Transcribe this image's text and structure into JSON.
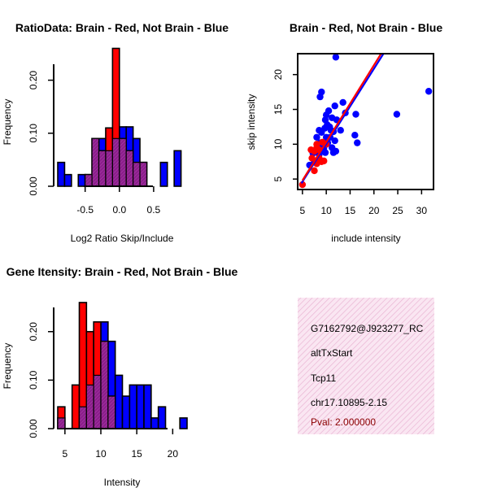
{
  "chart_data": [
    {
      "type": "bar",
      "title": "RatioData: Brain - Red, Not Brain - Blue",
      "xlabel": "Log2 Ratio Skip/Include",
      "ylabel": "Frequency",
      "xticks": [
        "-0.5",
        "0.0",
        "0.5"
      ],
      "yticks": [
        "0.00",
        "0.10",
        "0.20"
      ],
      "xlim": [
        -0.9,
        1.0
      ],
      "ylim": [
        0,
        0.25
      ],
      "bin_width": 0.1,
      "series": [
        {
          "name": "Not Brain",
          "color": "#0000ff",
          "bin_starts": [
            -0.9,
            -0.8,
            -0.7,
            -0.6,
            -0.5,
            -0.4,
            -0.3,
            -0.2,
            -0.1,
            0.0,
            0.1,
            0.2,
            0.3,
            0.4,
            0.5,
            0.6,
            0.7,
            0.8
          ],
          "values": [
            0.045,
            0.022,
            0.0,
            0.022,
            0.022,
            0.09,
            0.09,
            0.067,
            0.09,
            0.112,
            0.112,
            0.09,
            0.045,
            0.0,
            0.0,
            0.045,
            0.0,
            0.067
          ]
        },
        {
          "name": "Brain",
          "color": "#ff0000",
          "bin_starts": [
            -0.5,
            -0.4,
            -0.3,
            -0.2,
            -0.1,
            0.0,
            0.1,
            0.2,
            0.3
          ],
          "values": [
            0.022,
            0.09,
            0.067,
            0.11,
            0.26,
            0.09,
            0.067,
            0.045,
            0.045
          ]
        }
      ]
    },
    {
      "type": "scatter",
      "title": "Brain - Red, Not Brain - Blue",
      "xlabel": "include intensity",
      "ylabel": "skip intensity",
      "xticks": [
        "5",
        "10",
        "15",
        "20",
        "25",
        "30"
      ],
      "yticks": [
        "5",
        "10",
        "15",
        "20"
      ],
      "xlim": [
        4,
        32.5
      ],
      "ylim": [
        3.5,
        23
      ],
      "series": [
        {
          "name": "Not Brain",
          "color": "#0000ff",
          "points": [
            [
              12,
              22.5
            ],
            [
              9,
              17.5
            ],
            [
              8.7,
              16.8
            ],
            [
              10,
              14.2
            ],
            [
              10.5,
              14.8
            ],
            [
              11.8,
              15.5
            ],
            [
              13.5,
              16
            ],
            [
              12.2,
              13.5
            ],
            [
              14,
              14.5
            ],
            [
              16.2,
              14.3
            ],
            [
              16,
              11.3
            ],
            [
              16.5,
              10.2
            ],
            [
              24.8,
              14.3
            ],
            [
              31.5,
              17.6
            ],
            [
              11,
              12
            ],
            [
              11.5,
              11.8
            ],
            [
              13,
              12
            ],
            [
              10,
              11
            ],
            [
              9,
              10
            ],
            [
              8.7,
              10.2
            ],
            [
              9.5,
              9.5
            ],
            [
              10.3,
              10.2
            ],
            [
              11.2,
              9.5
            ],
            [
              12,
              9
            ],
            [
              11.8,
              10.5
            ],
            [
              10.7,
              12.5
            ],
            [
              8,
              11
            ],
            [
              8.5,
              12
            ],
            [
              9.7,
              12.3
            ],
            [
              10.2,
              12.8
            ],
            [
              9,
              11.7
            ],
            [
              7.5,
              9
            ],
            [
              7.2,
              8.7
            ],
            [
              8.5,
              8.5
            ],
            [
              9.8,
              8.8
            ],
            [
              10.8,
              11
            ],
            [
              8.8,
              9.2
            ],
            [
              9.8,
              13.5
            ],
            [
              11.2,
              13.8
            ],
            [
              7.5,
              7.5
            ],
            [
              6.5,
              7
            ],
            [
              11.5,
              8.8
            ]
          ]
        },
        {
          "name": "Brain",
          "color": "#ff0000",
          "points": [
            [
              5,
              4.2
            ],
            [
              7,
              8
            ],
            [
              7.5,
              9
            ],
            [
              8,
              9.5
            ],
            [
              8,
              10
            ],
            [
              8.5,
              9.2
            ],
            [
              7.5,
              6.2
            ],
            [
              8,
              7.2
            ],
            [
              9,
              7.5
            ],
            [
              9.5,
              7.6
            ],
            [
              9.2,
              10.3
            ],
            [
              10,
              10
            ],
            [
              6.8,
              9.2
            ],
            [
              8.5,
              8
            ]
          ]
        },
        {
          "name": "Not Brain fit",
          "color": "#0000ff",
          "from": [
            4.8,
            4.4
          ],
          "to": [
            22,
            23
          ]
        },
        {
          "name": "Brain fit",
          "color": "#ff0000",
          "from": [
            5,
            4.8
          ],
          "to": [
            21.5,
            23
          ]
        }
      ]
    },
    {
      "type": "bar",
      "title": "Gene Itensity: Brain - Red, Not Brain - Blue",
      "xlabel": "Intensity",
      "ylabel": "Frequency",
      "xticks": [
        "5",
        "10",
        "15",
        "20"
      ],
      "yticks": [
        "0.00",
        "0.10",
        "0.20"
      ],
      "xlim": [
        4,
        22
      ],
      "ylim": [
        0,
        0.27
      ],
      "bin_width": 1,
      "series": [
        {
          "name": "Not Brain",
          "color": "#0000ff",
          "bin_starts": [
            4,
            5,
            6,
            7,
            8,
            9,
            10,
            11,
            12,
            13,
            14,
            15,
            16,
            17,
            18,
            19,
            20,
            21
          ],
          "values": [
            0.022,
            0.0,
            0.0,
            0.045,
            0.09,
            0.11,
            0.22,
            0.18,
            0.11,
            0.067,
            0.09,
            0.09,
            0.09,
            0.022,
            0.045,
            0.0,
            0.0,
            0.022
          ]
        },
        {
          "name": "Brain",
          "color": "#ff0000",
          "bin_starts": [
            4,
            5,
            6,
            7,
            8,
            9,
            10,
            11
          ],
          "values": [
            0.045,
            0.0,
            0.09,
            0.26,
            0.2,
            0.22,
            0.18,
            0.067
          ]
        }
      ]
    }
  ],
  "info_box": {
    "probe_id": "G7162792@J923277_RC",
    "event_type": "altTxStart",
    "gene": "Tcp11",
    "location": "chr17.10895-2.15",
    "pval": "Pval: 2.000000"
  },
  "colors": {
    "brain": "#ff0000",
    "not_brain": "#0000ff",
    "overlap": "#8a1f8a",
    "info_bg": "#f6dcec"
  }
}
